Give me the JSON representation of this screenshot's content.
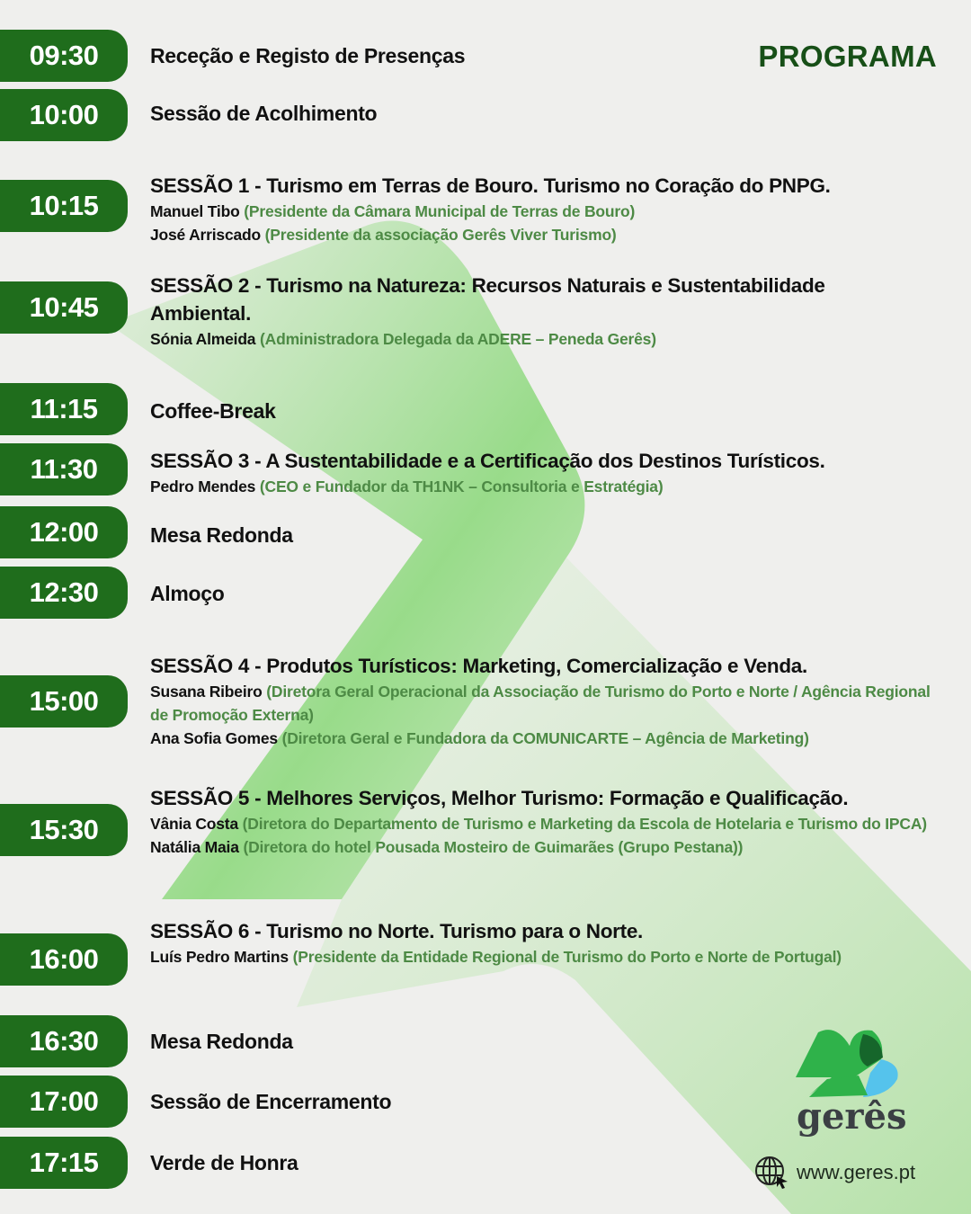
{
  "heading": "PROGRAMA",
  "colors": {
    "pill": "#1f6d1c",
    "role_text": "#4d8a45",
    "heading": "#174f17"
  },
  "schedule": [
    {
      "time": "09:30",
      "title": "Receção e Registo de Presenças"
    },
    {
      "time": "10:00",
      "title": "Sessão de Acolhimento"
    },
    {
      "time": "10:15",
      "title": "SESSÃO 1 - Turismo em Terras de Bouro. Turismo no Coração do PNPG.",
      "speakers": [
        {
          "name": "Manuel Tibo",
          "role": "(Presidente da Câmara Municipal de Terras de Bouro)"
        },
        {
          "name": "José Arriscado",
          "role": "(Presidente da associação Gerês Viver Turismo)"
        }
      ]
    },
    {
      "time": "10:45",
      "title": "SESSÃO 2 - Turismo na Natureza: Recursos Naturais e Sustentabilidade Ambiental.",
      "speakers": [
        {
          "name": "Sónia Almeida",
          "role": "(Administradora Delegada da ADERE – Peneda Gerês)"
        }
      ]
    },
    {
      "time": "11:15",
      "title": "Coffee-Break"
    },
    {
      "time": "11:30",
      "title": "SESSÃO 3 - A Sustentabilidade e a Certificação dos Destinos Turísticos.",
      "speakers": [
        {
          "name": "Pedro Mendes",
          "role": "(CEO e Fundador da TH1NK – Consultoria e Estratégia)"
        }
      ]
    },
    {
      "time": "12:00",
      "title": "Mesa Redonda"
    },
    {
      "time": "12:30",
      "title": "Almoço"
    },
    {
      "time": "15:00",
      "title": "SESSÃO 4 - Produtos Turísticos: Marketing, Comercialização e Venda.",
      "speakers": [
        {
          "name": "Susana Ribeiro",
          "role": "(Diretora Geral Operacional da Associação de Turismo do Porto e Norte / Agência Regional de Promoção Externa)"
        },
        {
          "name": "Ana Sofia Gomes",
          "role": "(Diretora Geral e Fundadora da COMUNICARTE – Agência de Marketing)"
        }
      ]
    },
    {
      "time": "15:30",
      "title": "SESSÃO 5 - Melhores Serviços, Melhor Turismo: Formação e Qualificação.",
      "speakers": [
        {
          "name": "Vânia Costa",
          "role": "(Diretora do Departamento de Turismo e Marketing da Escola de Hotelaria e Turismo do IPCA)"
        },
        {
          "name": "Natália Maia",
          "role": "(Diretora do hotel Pousada Mosteiro de Guimarães (Grupo Pestana))"
        }
      ]
    },
    {
      "time": "16:00",
      "title": "SESSÃO 6 - Turismo no Norte. Turismo para o Norte.",
      "speakers": [
        {
          "name": "Luís Pedro Martins",
          "role": "(Presidente da Entidade Regional de Turismo do Porto e Norte de Portugal)"
        }
      ]
    },
    {
      "time": "16:30",
      "title": "Mesa Redonda"
    },
    {
      "time": "17:00",
      "title": "Sessão de Encerramento"
    },
    {
      "time": "17:15",
      "title": "Verde de Honra"
    }
  ],
  "footer": {
    "brand": "gerês",
    "website": "www.geres.pt",
    "website_icon": "globe-cursor-icon"
  }
}
